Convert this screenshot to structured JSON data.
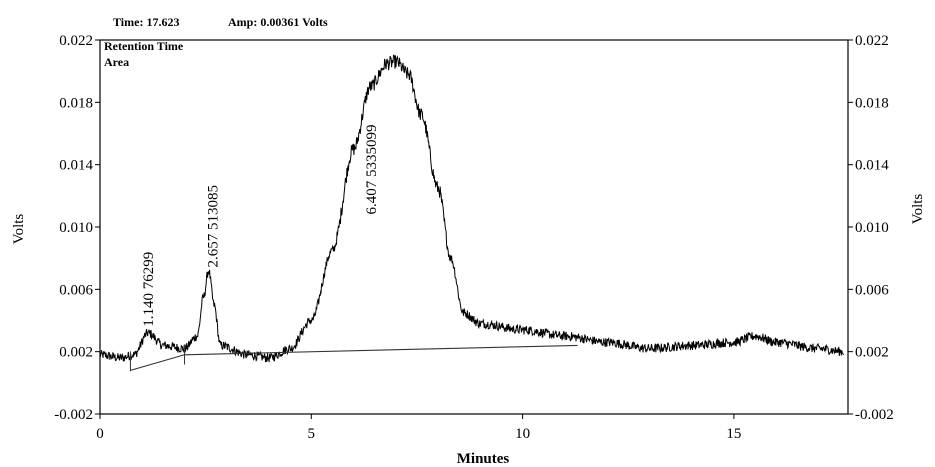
{
  "header": {
    "time_text": "Time: 17.623",
    "amp_text": "Amp: 0.00361 Volts"
  },
  "legend": {
    "line1": "Retention Time",
    "line2": "Area"
  },
  "chart_data": {
    "type": "line",
    "xlabel": "Minutes",
    "ylabel": "Volts",
    "ylabel_right": "Volts",
    "xlim": [
      0,
      17.7
    ],
    "ylim": [
      -0.002,
      0.022
    ],
    "x_ticks": [
      0,
      5,
      10,
      15
    ],
    "y_ticks": [
      "-0.002",
      "0.002",
      "0.006",
      "0.010",
      "0.014",
      "0.018",
      "0.022"
    ],
    "y_tick_values": [
      -0.002,
      0.002,
      0.006,
      0.01,
      0.014,
      0.018,
      0.022
    ],
    "grid": false,
    "series": [
      {
        "values_xy": [
          [
            0.0,
            0.0018
          ],
          [
            0.5,
            0.0016
          ],
          [
            0.8,
            0.0018
          ],
          [
            1.14,
            0.0032
          ],
          [
            1.5,
            0.0024
          ],
          [
            2.0,
            0.0022
          ],
          [
            2.3,
            0.003
          ],
          [
            2.45,
            0.0055
          ],
          [
            2.57,
            0.0072
          ],
          [
            2.7,
            0.005
          ],
          [
            2.85,
            0.0024
          ],
          [
            3.5,
            0.0018
          ],
          [
            4.0,
            0.0016
          ],
          [
            4.5,
            0.0022
          ],
          [
            5.0,
            0.004
          ],
          [
            5.5,
            0.0085
          ],
          [
            6.0,
            0.015
          ],
          [
            6.4,
            0.019
          ],
          [
            6.8,
            0.0205
          ],
          [
            7.0,
            0.0206
          ],
          [
            7.3,
            0.0198
          ],
          [
            7.6,
            0.0172
          ],
          [
            8.0,
            0.0125
          ],
          [
            8.3,
            0.008
          ],
          [
            8.6,
            0.0045
          ],
          [
            9.0,
            0.0038
          ],
          [
            10.0,
            0.0034
          ],
          [
            11.0,
            0.003
          ],
          [
            12.0,
            0.0026
          ],
          [
            13.0,
            0.0022
          ],
          [
            14.0,
            0.0024
          ],
          [
            15.0,
            0.0026
          ],
          [
            15.5,
            0.003
          ],
          [
            16.0,
            0.0026
          ],
          [
            17.0,
            0.0022
          ],
          [
            17.6,
            0.002
          ]
        ],
        "color": "#000000"
      }
    ],
    "baseline_segments": [
      [
        [
          0.72,
          0.0008
        ],
        [
          2.0,
          0.0018
        ]
      ],
      [
        [
          2.0,
          0.0018
        ],
        [
          11.3,
          0.0024
        ]
      ]
    ],
    "peak_markers": [
      0.72,
      2.0
    ],
    "peak_labels": [
      {
        "text": "1.140 76299",
        "x": 1.14,
        "y": 0.0036
      },
      {
        "text": "2.657 513085",
        "x": 2.657,
        "y": 0.0074
      },
      {
        "text": "6.407 5335099",
        "x": 6.407,
        "y": 0.0108
      }
    ]
  }
}
